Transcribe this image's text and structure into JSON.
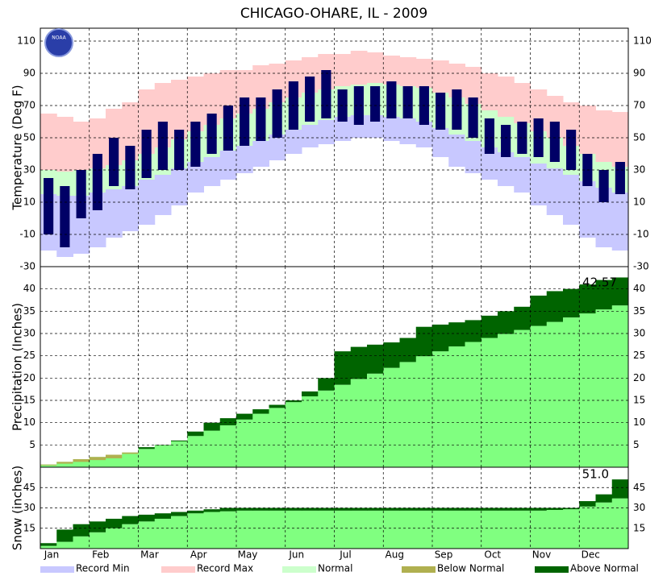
{
  "title": "CHICAGO-OHARE, IL - 2009",
  "logo_text": "NOAA",
  "legend": [
    {
      "name": "Record Min",
      "color": "#c8c8ff"
    },
    {
      "name": "Record Max",
      "color": "#ffcccc"
    },
    {
      "name": "Normal",
      "color": "#ccffcc"
    },
    {
      "name": "Below Normal",
      "color": "#b0b050"
    },
    {
      "name": "Above Normal",
      "color": "#006400"
    }
  ],
  "chart_data": [
    {
      "type": "range",
      "y_label": "Temperature (Deg F)",
      "ylim": [
        -30,
        118
      ],
      "yticks": [
        -30,
        -10,
        10,
        30,
        50,
        70,
        90,
        110
      ],
      "grid": true,
      "record_min": [
        -20,
        -24,
        -22,
        -18,
        -12,
        -8,
        -4,
        2,
        8,
        16,
        20,
        24,
        28,
        32,
        36,
        40,
        44,
        46,
        48,
        50,
        50,
        48,
        46,
        44,
        38,
        32,
        28,
        24,
        20,
        16,
        8,
        2,
        -4,
        -12,
        -18,
        -20
      ],
      "normal_low": [
        15,
        14,
        14,
        16,
        18,
        20,
        24,
        27,
        31,
        35,
        38,
        42,
        45,
        48,
        52,
        55,
        58,
        61,
        63,
        64,
        64,
        63,
        62,
        60,
        56,
        52,
        48,
        44,
        41,
        38,
        34,
        31,
        27,
        23,
        19,
        16
      ],
      "normal_high": [
        30,
        29,
        30,
        31,
        33,
        36,
        40,
        44,
        49,
        54,
        58,
        62,
        65,
        68,
        72,
        75,
        78,
        80,
        82,
        83,
        84,
        83,
        82,
        81,
        78,
        75,
        71,
        67,
        63,
        59,
        54,
        50,
        45,
        40,
        35,
        32
      ],
      "record_max": [
        65,
        63,
        60,
        62,
        68,
        72,
        80,
        84,
        86,
        88,
        90,
        92,
        92,
        95,
        96,
        98,
        100,
        102,
        102,
        104,
        103,
        101,
        100,
        99,
        98,
        96,
        94,
        90,
        88,
        84,
        80,
        76,
        72,
        70,
        67,
        66
      ],
      "actual_low": [
        -10,
        -18,
        0,
        5,
        20,
        18,
        25,
        30,
        30,
        32,
        40,
        42,
        45,
        48,
        50,
        55,
        60,
        62,
        60,
        58,
        60,
        62,
        62,
        58,
        55,
        55,
        50,
        40,
        38,
        40,
        38,
        35,
        30,
        20,
        10,
        15
      ],
      "actual_high": [
        25,
        20,
        30,
        40,
        50,
        45,
        55,
        60,
        55,
        60,
        65,
        70,
        75,
        75,
        80,
        85,
        88,
        92,
        80,
        82,
        82,
        85,
        82,
        82,
        78,
        80,
        75,
        62,
        58,
        60,
        62,
        60,
        55,
        40,
        30,
        35
      ],
      "colors": {
        "record_min": "#c8c8ff",
        "normal": "#ccffcc",
        "record_max": "#ffcccc",
        "actual": "#000066"
      }
    },
    {
      "type": "cumulative",
      "y_label": "Precipitation (Inches)",
      "ylim": [
        0,
        45
      ],
      "yticks": [
        5,
        10,
        15,
        20,
        25,
        30,
        35,
        40
      ],
      "grid": true,
      "normal": [
        0.6,
        1.2,
        1.8,
        2.3,
        2.8,
        3.3,
        4.1,
        4.9,
        5.8,
        7,
        8.2,
        9.4,
        10.7,
        12,
        13.3,
        14.6,
        15.9,
        17.2,
        18.5,
        19.8,
        21,
        22.3,
        23.6,
        24.9,
        26,
        27.1,
        28.1,
        29,
        29.9,
        30.8,
        31.7,
        32.6,
        33.6,
        34.5,
        35.4,
        36.3
      ],
      "actual": [
        0.4,
        0.8,
        1.2,
        1.6,
        2,
        3,
        4.5,
        5,
        6,
        8,
        10,
        11,
        12,
        13,
        14,
        15,
        17,
        20,
        26,
        27,
        27.5,
        28,
        29,
        31.5,
        32,
        32.5,
        33,
        34,
        35,
        36,
        38.5,
        39.5,
        40,
        41,
        42,
        42.57
      ],
      "colors": {
        "normal": "#80ff80",
        "above": "#006400",
        "below": "#b0b050"
      }
    },
    {
      "type": "cumulative",
      "y_label": "Snow (inches)",
      "ylim": [
        0,
        60
      ],
      "yticks": [
        15,
        30,
        45
      ],
      "grid": true,
      "normal": [
        2,
        5,
        9,
        12,
        15,
        18,
        20,
        22,
        24,
        26,
        27,
        27.5,
        28,
        28,
        28,
        28,
        28,
        28,
        28,
        28,
        28,
        28,
        28,
        28,
        28,
        28,
        28,
        28,
        28,
        28,
        28,
        28.5,
        29,
        31,
        34,
        37
      ],
      "actual": [
        4,
        14,
        18,
        20,
        22,
        24,
        25,
        26,
        27,
        28,
        29,
        30,
        30,
        30,
        30,
        30,
        30,
        30,
        30,
        30,
        30,
        30,
        30,
        30,
        30,
        30,
        30,
        30,
        30,
        30,
        30,
        30,
        30,
        35,
        40,
        51
      ],
      "annotation": "51.0",
      "categories": [
        "Jan",
        "Feb",
        "Mar",
        "Apr",
        "May",
        "Jun",
        "Jul",
        "Aug",
        "Sep",
        "Oct",
        "Nov",
        "Dec"
      ],
      "colors": {
        "normal": "#80ff80",
        "above": "#006400",
        "below": "#b0b050"
      }
    }
  ]
}
